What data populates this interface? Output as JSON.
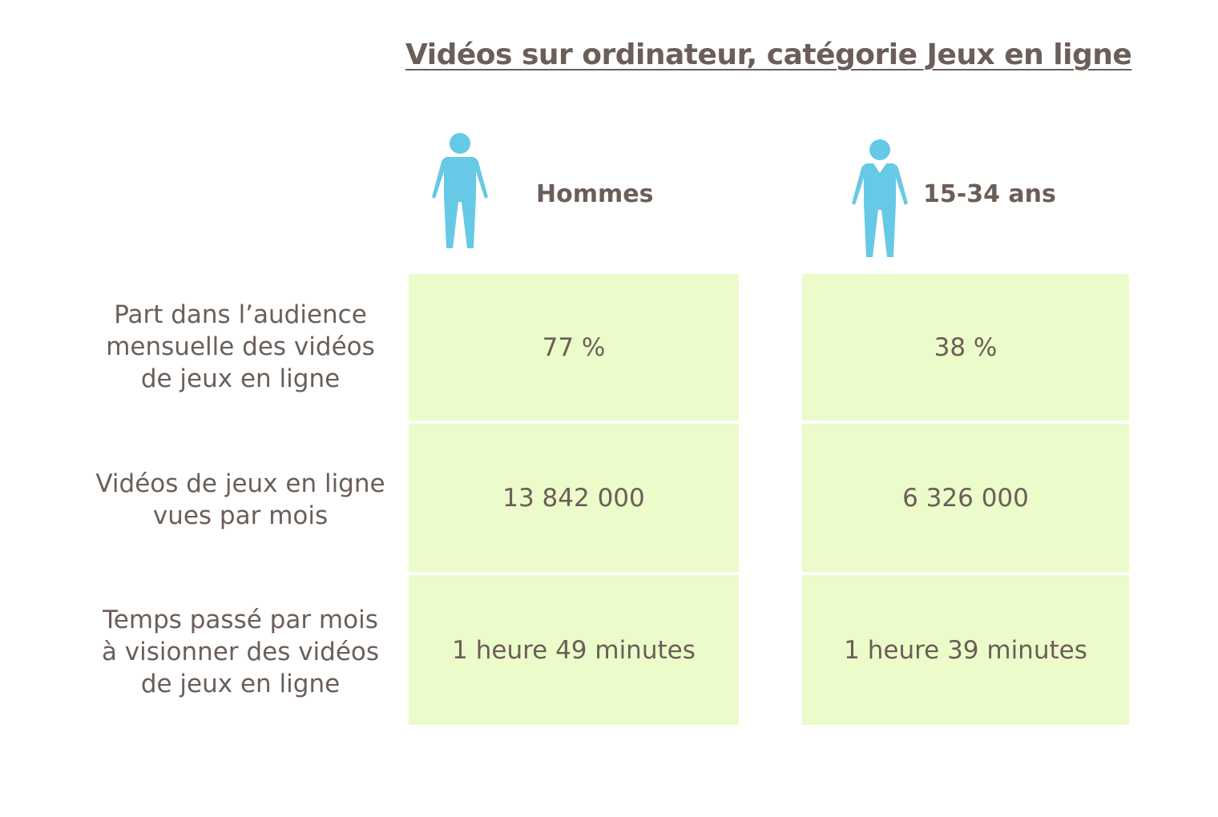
{
  "chart_data": {
    "type": "table",
    "title": "Vidéos sur ordinateur, catégorie Jeux en ligne",
    "columns": [
      {
        "label": "Hommes",
        "icon": "male-person-icon"
      },
      {
        "label": "15-34 ans",
        "icon": "young-person-icon"
      }
    ],
    "rows": [
      {
        "label_lines": [
          "Part dans l’audience",
          "mensuelle des vidéos",
          "de jeux en ligne"
        ],
        "values": [
          "77 %",
          "38 %"
        ]
      },
      {
        "label_lines": [
          "Vidéos de jeux en ligne",
          "vues par mois"
        ],
        "values": [
          "13 842 000",
          "6 326 000"
        ]
      },
      {
        "label_lines": [
          "Temps passé par mois",
          "à visionner des vidéos",
          "de jeux en ligne"
        ],
        "values": [
          "1 heure 49 minutes",
          "1 heure 39 minutes"
        ]
      }
    ]
  },
  "colors": {
    "text": "#6b5e58",
    "cell_background": "#ebfbc9",
    "icon": "#66c9e6"
  }
}
